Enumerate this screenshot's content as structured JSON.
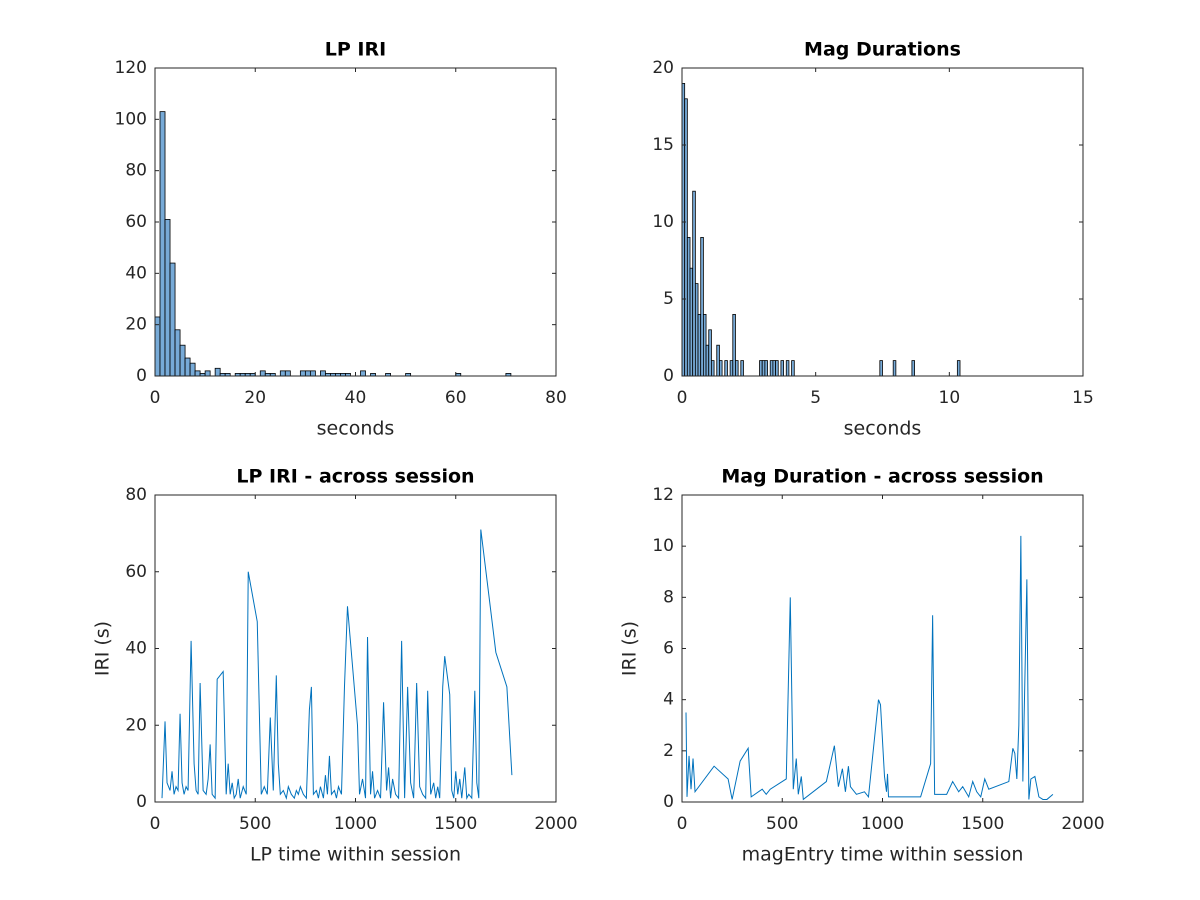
{
  "chart_data": [
    {
      "type": "histogram",
      "title": "LP IRI",
      "xlabel": "seconds",
      "bins": [
        0,
        1,
        2,
        3,
        4,
        5,
        6,
        7,
        8,
        9,
        10,
        11,
        12,
        13,
        14,
        15,
        16,
        17,
        18,
        19,
        20,
        21,
        22,
        23,
        24,
        25,
        26,
        27,
        28,
        29,
        30,
        31,
        32,
        33,
        34,
        35,
        36,
        37,
        38,
        39,
        40,
        41,
        42,
        43,
        44,
        45,
        46,
        47,
        48,
        49,
        50,
        51,
        52,
        53,
        54,
        55,
        56,
        57,
        58,
        59,
        60,
        61,
        62,
        63,
        64,
        65,
        66,
        67,
        68,
        69,
        70,
        71,
        72
      ],
      "values": [
        23,
        103,
        61,
        44,
        18,
        12,
        7,
        5,
        2,
        1,
        2,
        0,
        3,
        1,
        1,
        0,
        1,
        1,
        1,
        1,
        0,
        2,
        1,
        1,
        0,
        2,
        2,
        0,
        0,
        2,
        2,
        2,
        0,
        2,
        1,
        1,
        1,
        1,
        1,
        0,
        0,
        2,
        0,
        1,
        0,
        0,
        1,
        0,
        0,
        0,
        1,
        0,
        0,
        0,
        0,
        0,
        0,
        0,
        0,
        0,
        1,
        0,
        0,
        0,
        0,
        0,
        0,
        0,
        0,
        0,
        1,
        0
      ],
      "color": "#77aad7",
      "xlim": [
        0,
        80
      ],
      "xticks": [
        0,
        20,
        40,
        60,
        80
      ],
      "ylim": [
        0,
        120
      ],
      "yticks": [
        0,
        20,
        40,
        60,
        80,
        100,
        120
      ]
    },
    {
      "type": "histogram",
      "title": "Mag Durations",
      "xlabel": "seconds",
      "bins": [
        0,
        0.1,
        0.2,
        0.3,
        0.4,
        0.5,
        0.6,
        0.7,
        0.8,
        0.9,
        1.0,
        1.1,
        1.2,
        1.3,
        1.4,
        1.5,
        1.6,
        1.7,
        1.8,
        1.9,
        2.0,
        2.1,
        2.2,
        2.3,
        2.9,
        3.0,
        3.1,
        3.2,
        3.3,
        3.4,
        3.5,
        3.6,
        3.7,
        3.8,
        3.9,
        4.0,
        4.1,
        4.2,
        7.4,
        7.5,
        7.9,
        8.0,
        8.6,
        8.7,
        10.3,
        10.4
      ],
      "values": [
        19,
        18,
        9,
        7,
        12,
        6,
        4,
        9,
        4,
        2,
        3,
        1,
        0,
        2,
        1,
        0,
        1,
        0,
        1,
        4,
        1,
        0,
        1,
        0,
        1,
        1,
        1,
        0,
        1,
        1,
        1,
        0,
        1,
        0,
        1,
        0,
        1,
        0,
        1,
        0,
        1,
        0,
        1,
        0,
        1
      ],
      "color": "#77aad7",
      "xlim": [
        0,
        15
      ],
      "xticks": [
        0,
        5,
        10,
        15
      ],
      "ylim": [
        0,
        20
      ],
      "yticks": [
        0,
        5,
        10,
        15,
        20
      ]
    },
    {
      "type": "line",
      "title": "LP IRI - across session",
      "xlabel": "LP time within session",
      "ylabel": "IRI (s)",
      "x": [
        35,
        50,
        60,
        75,
        85,
        95,
        105,
        115,
        125,
        135,
        145,
        155,
        165,
        180,
        195,
        205,
        215,
        225,
        240,
        255,
        265,
        275,
        285,
        300,
        310,
        340,
        355,
        365,
        375,
        385,
        395,
        405,
        415,
        425,
        440,
        455,
        465,
        510,
        530,
        545,
        560,
        575,
        590,
        605,
        615,
        625,
        640,
        655,
        665,
        680,
        695,
        705,
        715,
        725,
        740,
        755,
        770,
        780,
        790,
        805,
        815,
        825,
        840,
        850,
        860,
        870,
        880,
        895,
        905,
        915,
        930,
        945,
        960,
        1010,
        1020,
        1035,
        1050,
        1060,
        1075,
        1085,
        1095,
        1110,
        1125,
        1140,
        1155,
        1165,
        1175,
        1185,
        1200,
        1215,
        1230,
        1245,
        1260,
        1275,
        1290,
        1305,
        1320,
        1335,
        1350,
        1360,
        1375,
        1390,
        1400,
        1410,
        1420,
        1435,
        1445,
        1470,
        1480,
        1490,
        1500,
        1510,
        1520,
        1530,
        1545,
        1555,
        1565,
        1580,
        1595,
        1605,
        1615,
        1625,
        1700,
        1755,
        1780
      ],
      "values": [
        1,
        21,
        5,
        3,
        8,
        2,
        4,
        3,
        23,
        5,
        2,
        4,
        3,
        42,
        10,
        3,
        2,
        31,
        3,
        2,
        6,
        15,
        2,
        1,
        32,
        34,
        2,
        10,
        2,
        5,
        1,
        2,
        6,
        1,
        4,
        2,
        60,
        47,
        2,
        4,
        2,
        22,
        3,
        33,
        10,
        2,
        3,
        1,
        4,
        2,
        1,
        3,
        2,
        4,
        2,
        1,
        24,
        30,
        2,
        3,
        1,
        4,
        1,
        7,
        2,
        12,
        2,
        3,
        1,
        4,
        2,
        30,
        51,
        20,
        2,
        6,
        1,
        43,
        2,
        8,
        1,
        3,
        1,
        26,
        3,
        9,
        1,
        6,
        2,
        1,
        42,
        1,
        30,
        5,
        1,
        31,
        4,
        2,
        1,
        29,
        2,
        5,
        1,
        4,
        1,
        30,
        38,
        28,
        3,
        1,
        8,
        2,
        6,
        1,
        9,
        1,
        2,
        1,
        29,
        5,
        1,
        71,
        39,
        30,
        7
      ],
      "color": "#0072bd",
      "xlim": [
        0,
        2000
      ],
      "xticks": [
        0,
        500,
        1000,
        1500,
        2000
      ],
      "ylim": [
        0,
        80
      ],
      "yticks": [
        0,
        20,
        40,
        60,
        80
      ]
    },
    {
      "type": "line",
      "title": "Mag Duration - across session",
      "xlabel": "magEntry time within session",
      "ylabel": "IRI (s)",
      "x": [
        20,
        25,
        35,
        45,
        55,
        65,
        160,
        230,
        250,
        290,
        330,
        345,
        400,
        420,
        440,
        520,
        540,
        555,
        570,
        580,
        595,
        605,
        720,
        760,
        780,
        800,
        815,
        830,
        840,
        870,
        910,
        930,
        980,
        990,
        1010,
        1020,
        1025,
        1030,
        1190,
        1240,
        1250,
        1260,
        1320,
        1350,
        1380,
        1400,
        1430,
        1450,
        1470,
        1490,
        1510,
        1530,
        1630,
        1650,
        1660,
        1670,
        1680,
        1690,
        1700,
        1720,
        1730,
        1740,
        1760,
        1780,
        1800,
        1820,
        1850
      ],
      "values": [
        3.5,
        0.2,
        1.8,
        0.5,
        1.7,
        0.4,
        1.4,
        0.9,
        0.1,
        1.6,
        2.1,
        0.2,
        0.5,
        0.3,
        0.5,
        0.9,
        8,
        0.5,
        1.7,
        0.3,
        1.0,
        0.1,
        0.8,
        2.2,
        0.6,
        1.3,
        0.4,
        1.4,
        0.6,
        0.3,
        0.4,
        0.2,
        4.0,
        3.8,
        1.0,
        0.4,
        1.1,
        0.2,
        0.2,
        1.5,
        7.3,
        0.3,
        0.3,
        0.8,
        0.4,
        0.6,
        0.2,
        0.8,
        0.4,
        0.2,
        0.9,
        0.5,
        0.8,
        2.1,
        1.9,
        0.9,
        3.0,
        10.4,
        0.8,
        8.7,
        0.1,
        0.9,
        1.0,
        0.2,
        0.1,
        0.1,
        0.3
      ],
      "color": "#0072bd",
      "xlim": [
        0,
        2000
      ],
      "xticks": [
        0,
        500,
        1000,
        1500,
        2000
      ],
      "ylim": [
        0,
        12
      ],
      "yticks": [
        0,
        2,
        4,
        6,
        8,
        10,
        12
      ]
    }
  ]
}
